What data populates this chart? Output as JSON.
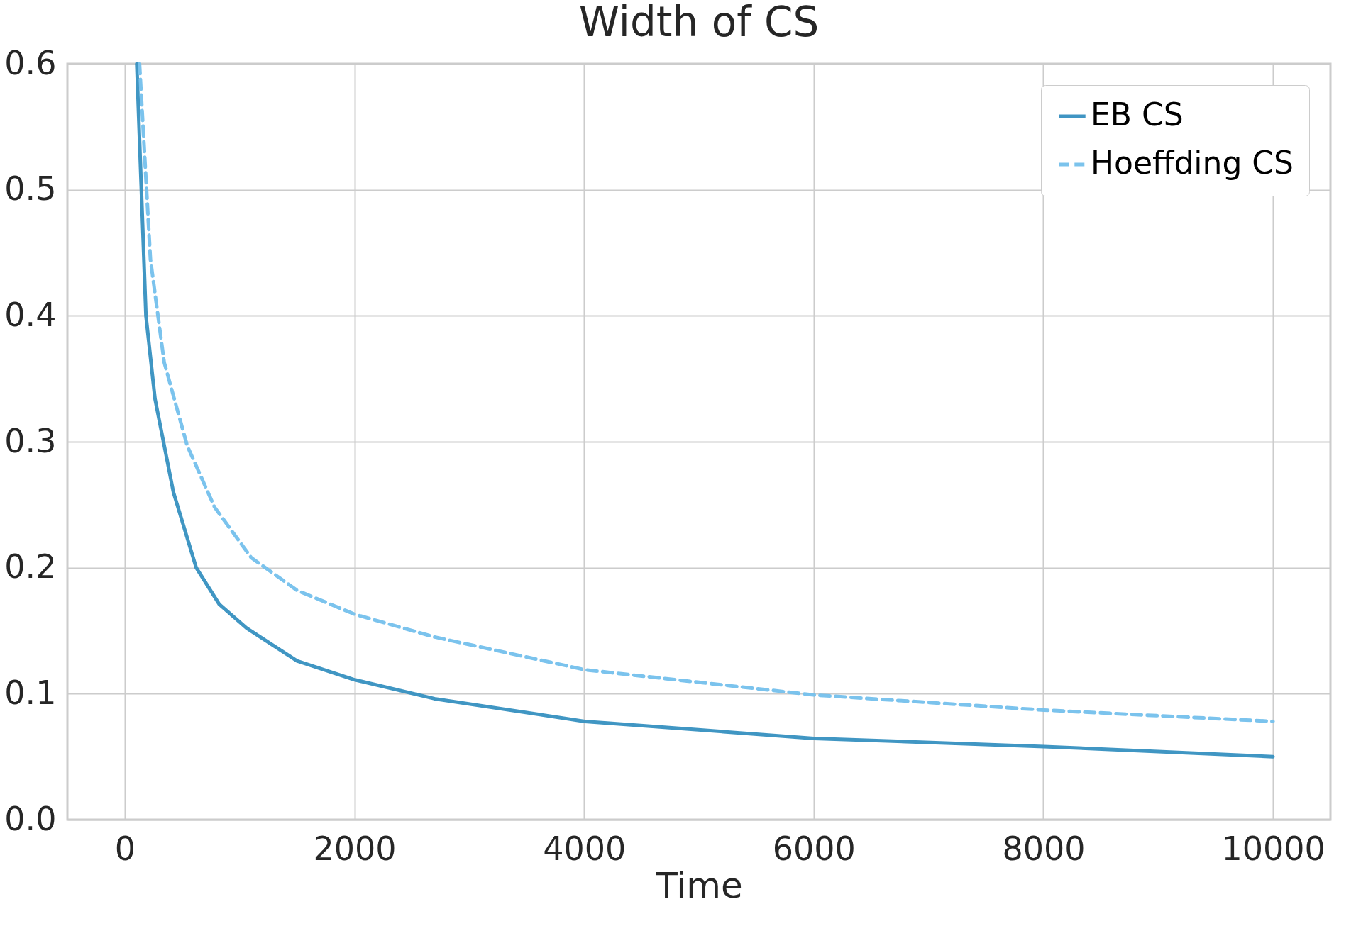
{
  "chart_data": {
    "type": "line",
    "title": "Width of CS",
    "xlabel": "Time",
    "xlim": [
      -500,
      10500
    ],
    "ylim": [
      0,
      0.6
    ],
    "xticks": [
      0,
      2000,
      4000,
      6000,
      8000,
      10000
    ],
    "yticks": [
      {
        "value": 0,
        "label": "0.0"
      },
      0.1,
      0.2,
      0.3,
      0.4,
      0.5,
      0.6
    ],
    "grid": true,
    "legend": "top right",
    "series": [
      {
        "name": "EB CS",
        "color": "#3690c0",
        "line_style": "solid",
        "x": [
          104,
          184,
          263,
          423,
          622,
          822,
          1061,
          1500,
          2003,
          2697,
          4006,
          6001,
          8005,
          10000
        ],
        "values": [
          0.6,
          0.4,
          0.334,
          0.26,
          0.2,
          0.171,
          0.152,
          0.126,
          0.111,
          0.096,
          0.078,
          0.0645,
          0.058,
          0.05
        ]
      },
      {
        "name": "Hoeffding CS",
        "color": "#74c0ec",
        "line_style": "dashed",
        "x": [
          128,
          223,
          343,
          543,
          782,
          1101,
          1500,
          2003,
          2697,
          4006,
          6001,
          8005,
          10000
        ],
        "values": [
          0.6,
          0.445,
          0.363,
          0.297,
          0.248,
          0.208,
          0.182,
          0.163,
          0.145,
          0.119,
          0.099,
          0.087,
          0.078
        ]
      }
    ]
  }
}
